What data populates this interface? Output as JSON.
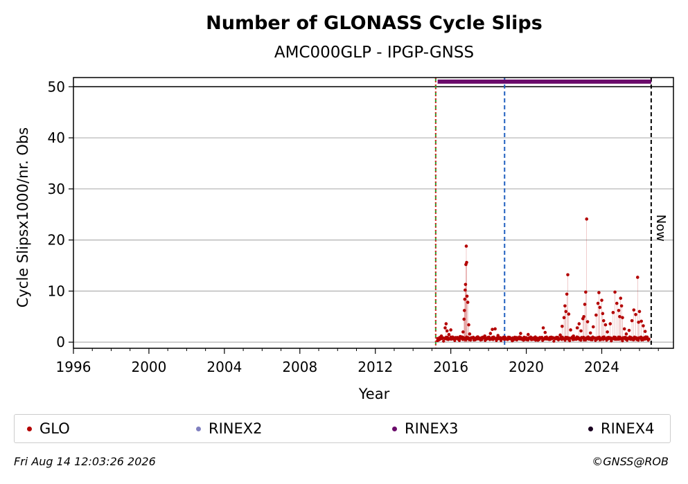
{
  "chart_data": {
    "type": "scatter",
    "title": "Number of GLONASS Cycle Slips",
    "subtitle": "AMC000GLP - IPGP-GNSS",
    "xlabel": "Year",
    "ylabel": "Cycle Slipsx1000/nr. Obs",
    "xlim": [
      1996.0,
      2027.8
    ],
    "ylim": [
      -1.2,
      51.8
    ],
    "x_ticks": [
      "1996",
      "2000",
      "2004",
      "2008",
      "2012",
      "2016",
      "2020",
      "2024"
    ],
    "y_ticks": [
      "0",
      "10",
      "20",
      "30",
      "40",
      "50"
    ],
    "grid": "horizontal",
    "vlines": [
      {
        "x": 2015.2,
        "color": "#2ca02c",
        "style": "dashed"
      },
      {
        "x": 2015.2,
        "color": "#d62728",
        "style": "dotted"
      },
      {
        "x": 2018.85,
        "color": "#1f5fbf",
        "style": "dashed"
      },
      {
        "x": 2026.62,
        "color": "#000000",
        "style": "dashed",
        "label": "Now"
      }
    ],
    "hline": {
      "y": 50,
      "color": "#000000"
    },
    "rinex_bar": {
      "y": 51,
      "x_start": 2015.3,
      "x_end": 2026.62,
      "color": "#6a0a6a"
    },
    "series": [
      {
        "name": "GLO",
        "color": "#b30000",
        "points": [
          [
            2015.3,
            0.3
          ],
          [
            2015.5,
            1.2
          ],
          [
            2015.7,
            2.8
          ],
          [
            2015.75,
            3.6
          ],
          [
            2015.8,
            2.2
          ],
          [
            2015.9,
            1.5
          ],
          [
            2016.0,
            2.4
          ],
          [
            2016.1,
            1.0
          ],
          [
            2016.2,
            0.6
          ],
          [
            2016.4,
            0.8
          ],
          [
            2016.5,
            1.1
          ],
          [
            2016.65,
            2.0
          ],
          [
            2016.7,
            4.5
          ],
          [
            2016.72,
            6.2
          ],
          [
            2016.74,
            8.4
          ],
          [
            2016.76,
            10.2
          ],
          [
            2016.78,
            11.3
          ],
          [
            2016.8,
            15.2
          ],
          [
            2016.82,
            18.8
          ],
          [
            2016.84,
            15.6
          ],
          [
            2016.86,
            9.0
          ],
          [
            2016.9,
            7.8
          ],
          [
            2016.95,
            3.4
          ],
          [
            2017.0,
            1.6
          ],
          [
            2017.2,
            0.8
          ],
          [
            2017.4,
            1.0
          ],
          [
            2017.6,
            0.6
          ],
          [
            2017.8,
            1.2
          ],
          [
            2018.0,
            0.9
          ],
          [
            2018.1,
            1.7
          ],
          [
            2018.2,
            2.5
          ],
          [
            2018.35,
            2.6
          ],
          [
            2018.5,
            1.3
          ],
          [
            2018.7,
            0.8
          ],
          [
            2018.9,
            0.6
          ],
          [
            2019.1,
            0.7
          ],
          [
            2019.3,
            0.4
          ],
          [
            2019.5,
            0.9
          ],
          [
            2019.7,
            1.7
          ],
          [
            2019.9,
            0.5
          ],
          [
            2020.1,
            1.5
          ],
          [
            2020.3,
            0.6
          ],
          [
            2020.5,
            0.4
          ],
          [
            2020.7,
            0.8
          ],
          [
            2020.9,
            2.8
          ],
          [
            2021.0,
            1.9
          ],
          [
            2021.2,
            0.6
          ],
          [
            2021.4,
            0.9
          ],
          [
            2021.6,
            0.7
          ],
          [
            2021.8,
            1.4
          ],
          [
            2021.9,
            3.1
          ],
          [
            2022.0,
            4.8
          ],
          [
            2022.05,
            7.1
          ],
          [
            2022.1,
            6.0
          ],
          [
            2022.15,
            9.4
          ],
          [
            2022.2,
            13.2
          ],
          [
            2022.25,
            5.5
          ],
          [
            2022.35,
            2.4
          ],
          [
            2022.5,
            1.2
          ],
          [
            2022.7,
            2.8
          ],
          [
            2022.8,
            3.6
          ],
          [
            2022.9,
            2.2
          ],
          [
            2023.0,
            4.6
          ],
          [
            2023.05,
            5.0
          ],
          [
            2023.1,
            7.4
          ],
          [
            2023.15,
            9.8
          ],
          [
            2023.2,
            24.1
          ],
          [
            2023.25,
            4.0
          ],
          [
            2023.4,
            1.8
          ],
          [
            2023.55,
            3.0
          ],
          [
            2023.7,
            5.3
          ],
          [
            2023.8,
            7.6
          ],
          [
            2023.85,
            9.7
          ],
          [
            2023.9,
            6.8
          ],
          [
            2024.0,
            8.2
          ],
          [
            2024.05,
            5.6
          ],
          [
            2024.1,
            4.2
          ],
          [
            2024.2,
            3.4
          ],
          [
            2024.3,
            2.0
          ],
          [
            2024.45,
            3.6
          ],
          [
            2024.6,
            5.8
          ],
          [
            2024.7,
            9.8
          ],
          [
            2024.8,
            7.6
          ],
          [
            2024.9,
            6.2
          ],
          [
            2024.95,
            5.0
          ],
          [
            2025.0,
            8.6
          ],
          [
            2025.05,
            7.1
          ],
          [
            2025.1,
            4.8
          ],
          [
            2025.2,
            2.6
          ],
          [
            2025.3,
            1.6
          ],
          [
            2025.45,
            2.3
          ],
          [
            2025.6,
            4.2
          ],
          [
            2025.7,
            6.3
          ],
          [
            2025.8,
            5.4
          ],
          [
            2025.9,
            12.7
          ],
          [
            2025.95,
            3.9
          ],
          [
            2026.0,
            6.0
          ],
          [
            2026.1,
            4.1
          ],
          [
            2026.2,
            3.2
          ],
          [
            2026.3,
            2.1
          ],
          [
            2026.4,
            1.0
          ],
          [
            2026.5,
            0.6
          ]
        ]
      }
    ],
    "legend": [
      {
        "label": "GLO",
        "color": "#b30000"
      },
      {
        "label": "RINEX2",
        "color": "#8080c0"
      },
      {
        "label": "RINEX3",
        "color": "#6a0a6a"
      },
      {
        "label": "RINEX4",
        "color": "#1a0020"
      }
    ],
    "now_label": "Now"
  },
  "footer": {
    "date": "Fri Aug 14 12:03:26 2026",
    "credit": "©GNSS@ROB"
  }
}
